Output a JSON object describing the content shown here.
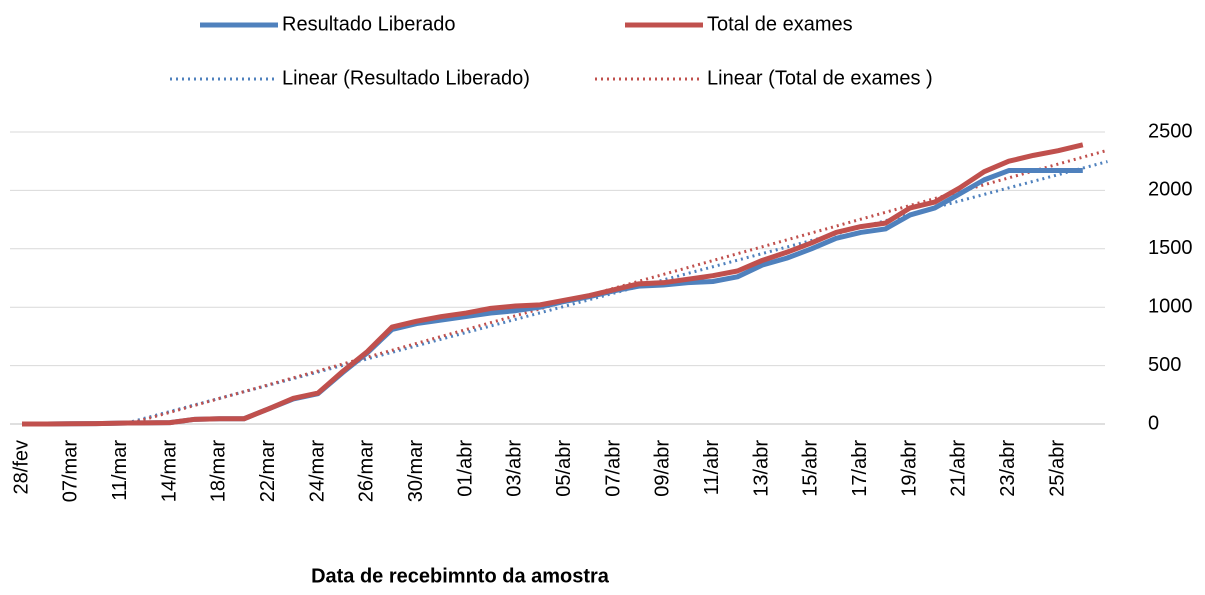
{
  "chart_data": {
    "type": "line",
    "x_label": "Data de recebimnto da amostra",
    "categories": [
      "28/fev",
      null,
      "07/mar",
      null,
      "11/mar",
      null,
      "14/mar",
      null,
      "18/mar",
      null,
      "22/mar",
      null,
      "24/mar",
      null,
      "26/mar",
      null,
      "30/mar",
      null,
      "01/abr",
      null,
      "03/abr",
      null,
      "05/abr",
      null,
      "07/abr",
      null,
      "09/abr",
      null,
      "11/abr",
      null,
      "13/abr",
      null,
      "15/abr",
      null,
      "17/abr",
      null,
      "19/abr",
      null,
      "21/abr",
      null,
      "23/abr",
      null,
      "25/abr",
      null
    ],
    "series": [
      {
        "name": "Resultado Liberado",
        "color": "#4f81bd",
        "trendline": "Linear (Resultado Liberado)",
        "values": [
          0,
          0,
          2,
          3,
          8,
          10,
          12,
          40,
          45,
          45,
          130,
          215,
          260,
          440,
          610,
          810,
          860,
          890,
          920,
          950,
          970,
          1000,
          1050,
          1090,
          1140,
          1180,
          1190,
          1210,
          1220,
          1260,
          1360,
          1420,
          1500,
          1590,
          1640,
          1670,
          1790,
          1850,
          1970,
          2090,
          2170,
          2170,
          2170,
          2170
        ]
      },
      {
        "name": "Total de exames",
        "color": "#c0504d",
        "trendline": "Linear (Total de exames )",
        "values": [
          0,
          0,
          2,
          3,
          8,
          10,
          12,
          40,
          45,
          45,
          130,
          220,
          265,
          450,
          620,
          830,
          880,
          920,
          950,
          990,
          1010,
          1020,
          1060,
          1100,
          1150,
          1200,
          1210,
          1240,
          1270,
          1310,
          1400,
          1470,
          1550,
          1640,
          1690,
          1720,
          1850,
          1900,
          2020,
          2160,
          2250,
          2300,
          2340,
          2390
        ]
      }
    ],
    "ylim": [
      0,
      2500
    ],
    "yticks": [
      0,
      500,
      1000,
      1500,
      2000,
      2500
    ],
    "grid": true,
    "legend": "top"
  }
}
